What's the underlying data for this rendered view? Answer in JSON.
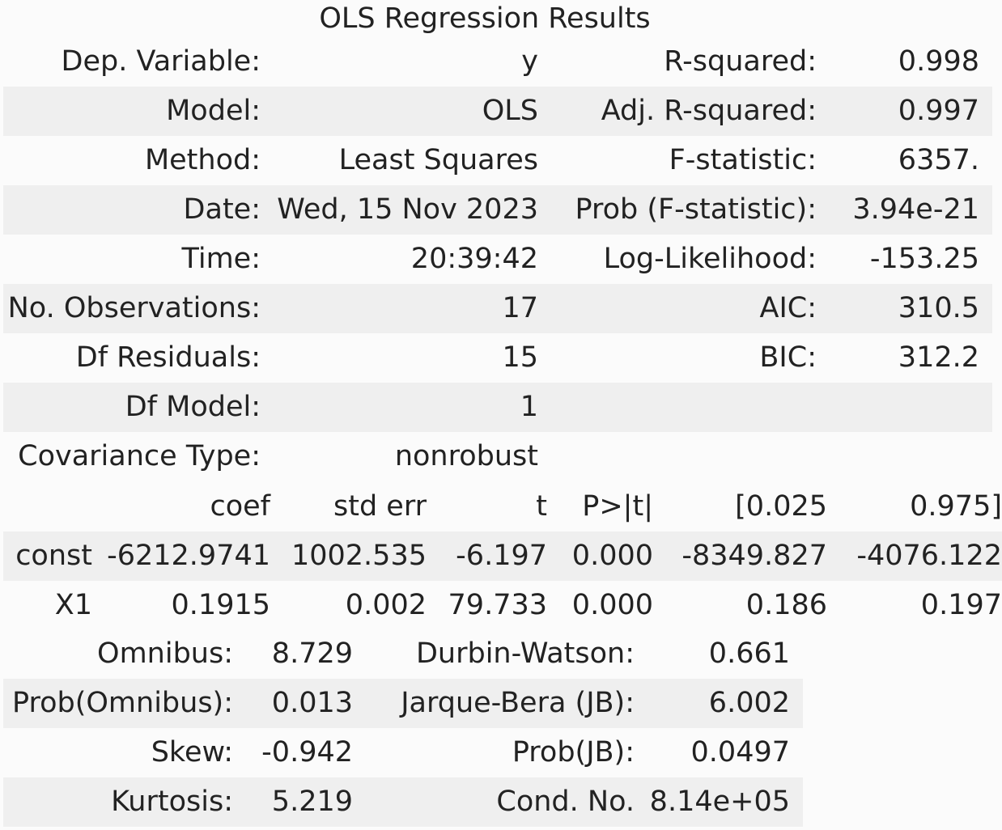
{
  "title": "OLS Regression Results",
  "summary": [
    [
      "Dep. Variable:",
      "y",
      "R-squared:",
      "0.998"
    ],
    [
      "Model:",
      "OLS",
      "Adj. R-squared:",
      "0.997"
    ],
    [
      "Method:",
      "Least Squares",
      "F-statistic:",
      "6357."
    ],
    [
      "Date:",
      "Wed, 15 Nov 2023",
      "Prob (F-statistic):",
      "3.94e-21"
    ],
    [
      "Time:",
      "20:39:42",
      "Log-Likelihood:",
      "-153.25"
    ],
    [
      "No. Observations:",
      "17",
      "AIC:",
      "310.5"
    ],
    [
      "Df Residuals:",
      "15",
      "BIC:",
      "312.2"
    ],
    [
      "Df Model:",
      "1",
      "",
      ""
    ],
    [
      "Covariance Type:",
      "nonrobust",
      "",
      ""
    ]
  ],
  "coef_table": {
    "headers": [
      "",
      "coef",
      "std err",
      "t",
      "P>|t|",
      "[0.025",
      "0.975]"
    ],
    "rows": [
      [
        "const",
        "-6212.9741",
        "1002.535",
        "-6.197",
        "0.000",
        "-8349.827",
        "-4076.122"
      ],
      [
        "X1",
        "0.1915",
        "0.002",
        "79.733",
        "0.000",
        "0.186",
        "0.197"
      ]
    ]
  },
  "diagnostics": [
    [
      "Omnibus:",
      "8.729",
      "Durbin-Watson:",
      "0.661"
    ],
    [
      "Prob(Omnibus):",
      "0.013",
      "Jarque-Bera (JB):",
      "6.002"
    ],
    [
      "Skew:",
      "-0.942",
      "Prob(JB):",
      "0.0497"
    ],
    [
      "Kurtosis:",
      "5.219",
      "Cond. No.",
      "8.14e+05"
    ]
  ]
}
